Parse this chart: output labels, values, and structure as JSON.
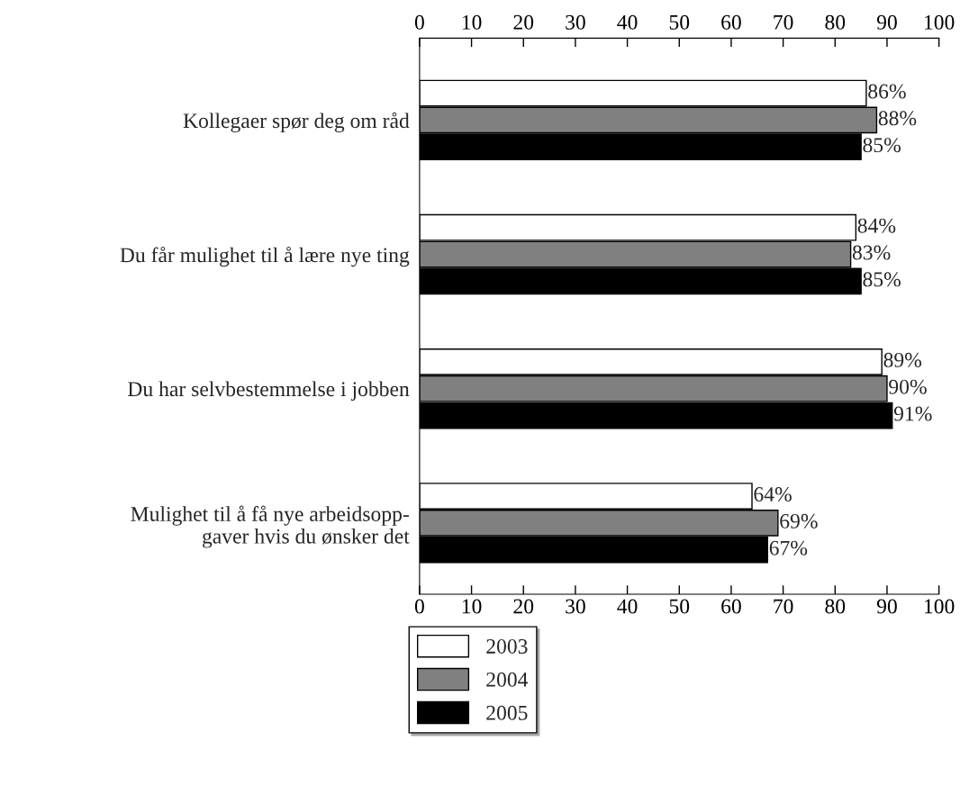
{
  "chart_data": {
    "type": "bar",
    "orientation": "horizontal",
    "categories": [
      "Kollegaer spør deg om råd",
      "Du får mulighet til å lære nye ting",
      "Du har selvbestemmelse i jobben",
      "Mulighet til å få nye arbeidsopp-\ngaver hvis du ønsker det"
    ],
    "series": [
      {
        "name": "2003",
        "color": "#ffffff",
        "values": [
          86,
          84,
          89,
          64
        ],
        "value_labels": [
          "86%",
          "84%",
          "89%",
          "64%"
        ]
      },
      {
        "name": "2004",
        "color": "#808080",
        "values": [
          88,
          83,
          90,
          69
        ],
        "value_labels": [
          "88%",
          "83%",
          "90%",
          "69%"
        ]
      },
      {
        "name": "2005",
        "color": "#000000",
        "values": [
          85,
          85,
          91,
          67
        ],
        "value_labels": [
          "85%",
          "85%",
          "91%",
          "67%"
        ]
      }
    ],
    "xlim": [
      0,
      100
    ],
    "xticks": [
      0,
      10,
      20,
      30,
      40,
      50,
      60,
      70,
      80,
      90,
      100
    ],
    "x2lim": [
      0,
      100
    ],
    "x2ticks": [
      0,
      10,
      20,
      30,
      40,
      50,
      60,
      70,
      80,
      90,
      100
    ],
    "legend": "bottom"
  }
}
